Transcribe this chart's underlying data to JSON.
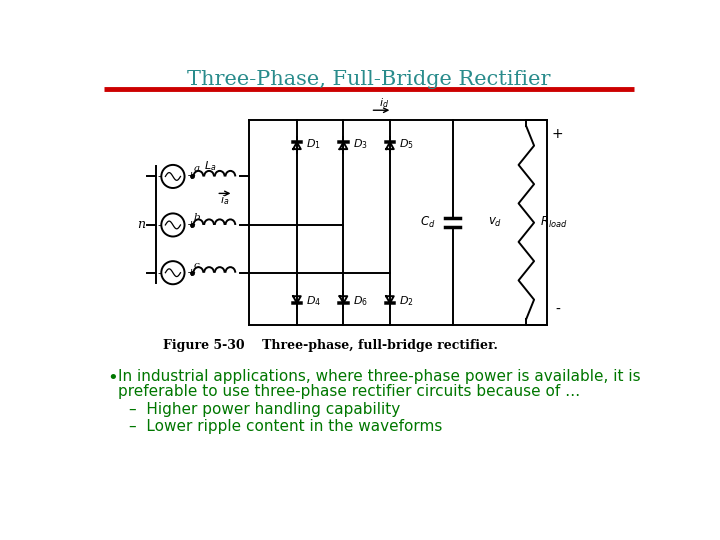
{
  "title": "Three-Phase, Full-Bridge Rectifier",
  "title_color": "#2A8C8C",
  "title_fontsize": 15,
  "line_color": "#CC0000",
  "bg_color": "#FFFFFF",
  "circuit_image_caption": "Figure 5-30    Three-phase, full-bridge rectifier.",
  "bullet_color": "#007700",
  "bullet_text_line1": "In industrial applications, where three-phase power is available, it is",
  "bullet_text_line2": "preferable to use three-phase rectifier circuits because of …",
  "sub_bullet1": "Higher power handling capability",
  "sub_bullet2": "Lower ripple content in the waveforms",
  "text_fontsize": 11,
  "sub_fontsize": 11,
  "caption_fontsize": 9
}
